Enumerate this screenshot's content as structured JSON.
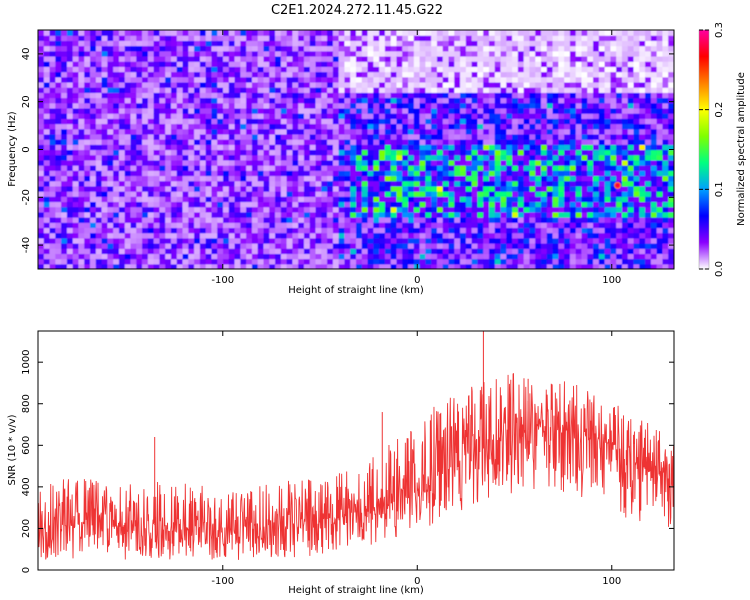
{
  "figure": {
    "title": "C2E1.2024.272.11.45.G22"
  },
  "chart_data": [
    {
      "type": "heatmap",
      "xlabel": "Height of straight line (km)",
      "ylabel": "Frequency (Hz)",
      "xlim": [
        -195,
        132
      ],
      "ylim": [
        -50,
        50
      ],
      "xticks": [
        -100,
        0,
        100
      ],
      "yticks": [
        -40,
        -20,
        0,
        20,
        40
      ],
      "colorbar": {
        "label": "Normalized spectral amplitude",
        "range": [
          0.0,
          0.3
        ],
        "ticks": [
          0.0,
          0.1,
          0.2,
          0.3
        ],
        "tick_labels": [
          "0.0",
          "0.1",
          "0.2",
          "0.3"
        ],
        "colors": [
          "#ffffff",
          "#8a00ff",
          "#0000ff",
          "#00a0ff",
          "#00ff80",
          "#80ff00",
          "#ffff00",
          "#ff8000",
          "#ff0000",
          "#ff00a0"
        ]
      },
      "features": [
        {
          "x_range": [
            -195,
            -40
          ],
          "y_range": [
            -50,
            50
          ],
          "level": 0.03
        },
        {
          "x_range": [
            -35,
            132
          ],
          "y_range": [
            -28,
            2
          ],
          "level": 0.09
        },
        {
          "x_range": [
            -40,
            132
          ],
          "y_range": [
            25,
            50
          ],
          "level": 0.0
        }
      ],
      "peak": {
        "x": 103,
        "y": -15,
        "value": 0.28
      }
    },
    {
      "type": "line",
      "xlabel": "Height of straight line (km)",
      "ylabel": "SNR (10 * v/v)",
      "xlim": [
        -195,
        132
      ],
      "ylim": [
        0,
        1150
      ],
      "xticks": [
        -100,
        0,
        100
      ],
      "yticks": [
        0,
        200,
        400,
        600,
        800,
        1000
      ],
      "color": "#ee3333",
      "envelope": {
        "x": [
          -195,
          -180,
          -160,
          -140,
          -120,
          -100,
          -80,
          -60,
          -40,
          -20,
          0,
          20,
          40,
          60,
          80,
          100,
          120,
          132
        ],
        "median": [
          210,
          225,
          215,
          220,
          205,
          200,
          215,
          230,
          250,
          290,
          380,
          520,
          640,
          680,
          660,
          580,
          470,
          430
        ],
        "upper": [
          400,
          450,
          430,
          450,
          420,
          390,
          420,
          440,
          470,
          560,
          730,
          860,
          940,
          950,
          900,
          820,
          700,
          640
        ],
        "lower": [
          40,
          50,
          45,
          55,
          40,
          45,
          50,
          60,
          80,
          110,
          180,
          260,
          360,
          380,
          350,
          280,
          180,
          120
        ]
      },
      "spikes": [
        {
          "x": -135,
          "y": 640
        },
        {
          "x": -18,
          "y": 760
        },
        {
          "x": 34,
          "y": 1150
        },
        {
          "x": 57,
          "y": 920
        }
      ]
    }
  ]
}
